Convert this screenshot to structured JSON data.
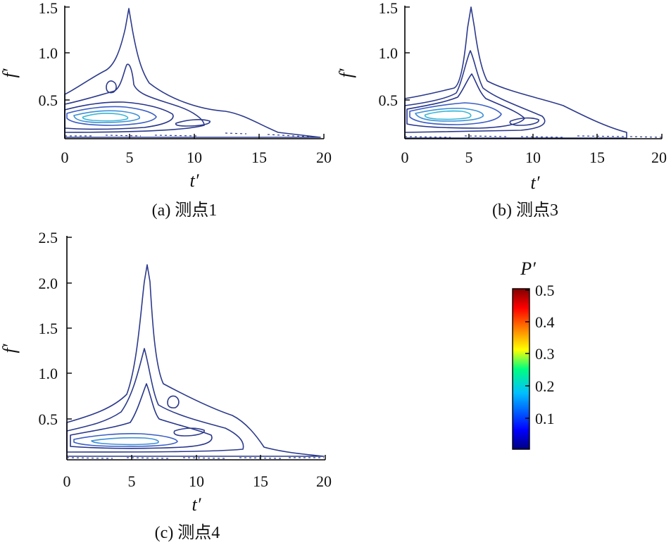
{
  "chart_data": [
    {
      "type": "contour",
      "caption": "(a) 测点1",
      "xlabel": "t′",
      "ylabel": "f′",
      "xlim": [
        0,
        20
      ],
      "ylim": [
        0.05,
        1.5
      ],
      "xticks": [
        "0",
        "5",
        "10",
        "15",
        "20"
      ],
      "yticks": [
        "0.5",
        "1.0",
        "1.5"
      ],
      "ytick_values": [
        0.5,
        1.0,
        1.5
      ],
      "peak": {
        "t": 5.0,
        "f": 1.45
      },
      "energy_center": {
        "t": 3.5,
        "f": 0.25
      },
      "max_level": 0.2
    },
    {
      "type": "contour",
      "caption": "(b) 测点3",
      "xlabel": "t′",
      "ylabel": "f′",
      "xlim": [
        0,
        20
      ],
      "ylim": [
        0.05,
        1.5
      ],
      "xticks": [
        "0",
        "5",
        "10",
        "15",
        "20"
      ],
      "yticks": [
        "0.5",
        "1.0",
        "1.5"
      ],
      "ytick_values": [
        0.5,
        1.0,
        1.5
      ],
      "peak": {
        "t": 5.3,
        "f": 1.5
      },
      "energy_center": {
        "t": 3.5,
        "f": 0.3
      },
      "max_level": 0.2
    },
    {
      "type": "contour",
      "caption": "(c) 测点4",
      "xlabel": "t′",
      "ylabel": "f′",
      "xlim": [
        0,
        20
      ],
      "ylim": [
        0.05,
        2.5
      ],
      "xticks": [
        "0",
        "5",
        "10",
        "15",
        "20"
      ],
      "yticks": [
        "0.5",
        "1.0",
        "1.5",
        "2.0",
        "2.5"
      ],
      "ytick_values": [
        0.5,
        1.0,
        1.5,
        2.0,
        2.5
      ],
      "peak": {
        "t": 6.2,
        "f": 2.2
      },
      "energy_center": {
        "t": 5.0,
        "f": 0.22
      },
      "max_level": 0.12
    }
  ],
  "colorbar": {
    "title": "P′",
    "tick_labels": [
      "0.5",
      "0.4",
      "0.3",
      "0.2",
      "0.1"
    ],
    "tick_values": [
      0.5,
      0.4,
      0.3,
      0.2,
      0.1
    ],
    "range": [
      0,
      0.5
    ],
    "colors": [
      "#000080",
      "#0000ff",
      "#00bfff",
      "#00ff80",
      "#ffff00",
      "#ff8000",
      "#ff0000",
      "#800000"
    ]
  }
}
